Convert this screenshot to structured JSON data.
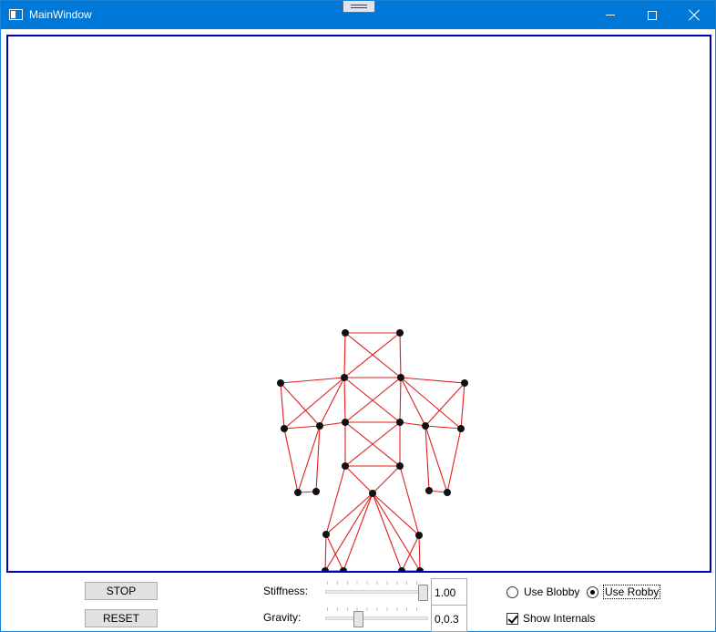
{
  "window": {
    "title": "MainWindow",
    "icon": "window-app-icon"
  },
  "caption_buttons": [
    "minimize-icon",
    "maximize-icon",
    "close-icon"
  ],
  "colors": {
    "titlebar": "#0078d7",
    "canvas_border": "#0000b8",
    "springs": "#dd1e1e",
    "nodes": "#111111"
  },
  "controls": {
    "stop_label": "STOP",
    "reset_label": "RESET",
    "stiffness_label": "Stiffness:",
    "stiffness_value": "1.00",
    "stiffness_slider_fraction": 1.0,
    "gravity_label": "Gravity:",
    "gravity_value": "0,0.3",
    "gravity_slider_fraction": 0.3,
    "use_blobby_label": "Use Blobby",
    "use_blobby_selected": false,
    "use_robby_label": "Use Robby",
    "use_robby_selected": true,
    "show_internals_label": "Show Internals",
    "show_internals_checked": true
  }
}
